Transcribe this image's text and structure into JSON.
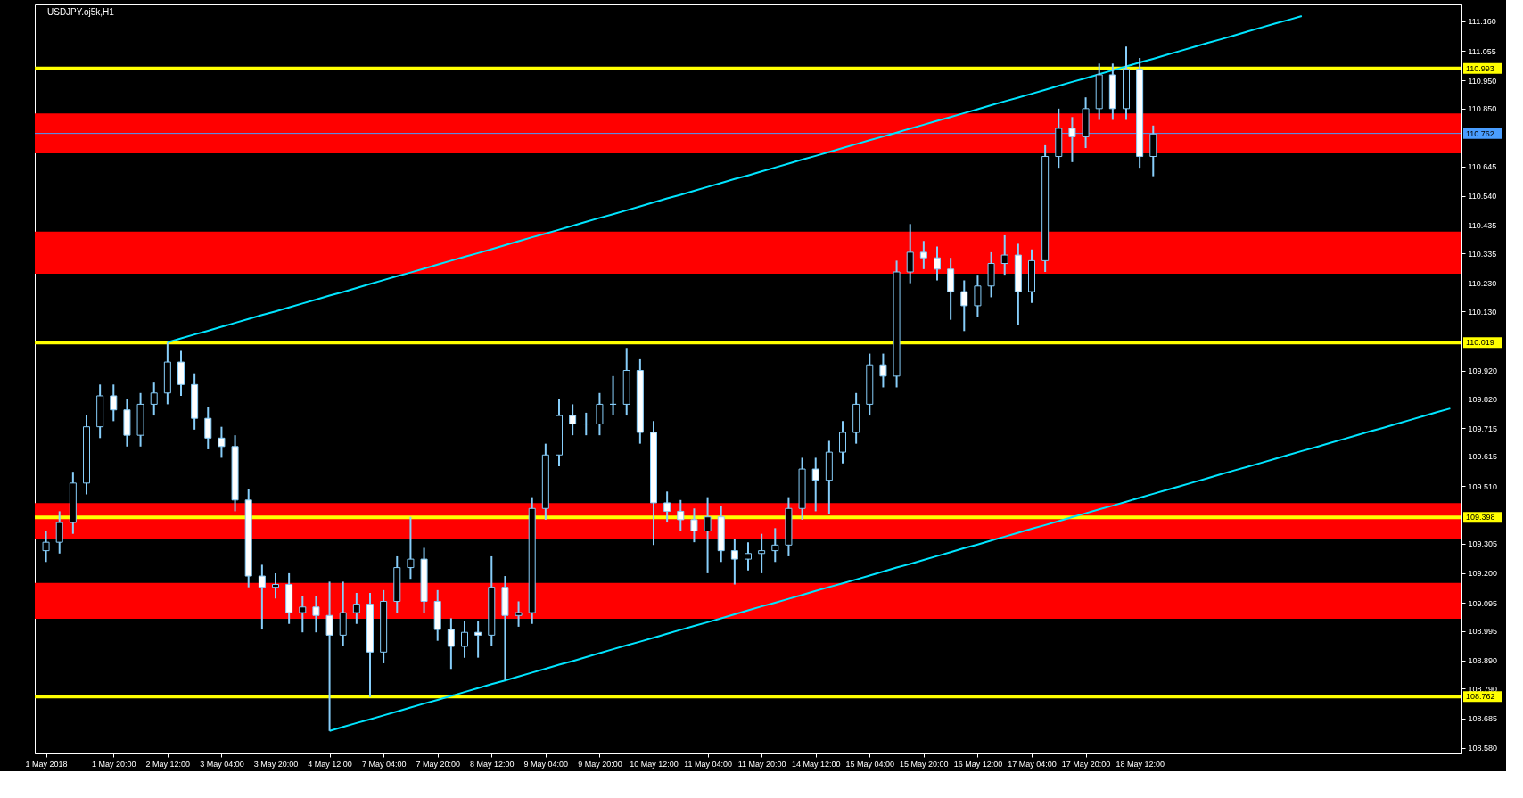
{
  "chart_data": {
    "type": "candlestick",
    "title": "USDJPY.oj5k,H1",
    "categories": [
      "1 May 2018",
      null,
      null,
      null,
      null,
      "1 May 20:00",
      null,
      null,
      null,
      "2 May 12:00",
      null,
      null,
      null,
      "3 May 04:00",
      null,
      null,
      null,
      "3 May 20:00",
      null,
      null,
      null,
      "4 May 12:00",
      null,
      null,
      null,
      "7 May 04:00",
      null,
      null,
      null,
      "7 May 20:00",
      null,
      null,
      null,
      "8 May 12:00",
      null,
      null,
      null,
      "9 May 04:00",
      null,
      null,
      null,
      "9 May 20:00",
      null,
      null,
      null,
      "10 May 12:00",
      null,
      null,
      null,
      "11 May 04:00",
      null,
      null,
      null,
      "11 May 20:00",
      null,
      null,
      null,
      "14 May 12:00",
      null,
      null,
      null,
      "15 May 04:00",
      null,
      null,
      null,
      "15 May 20:00",
      null,
      null,
      null,
      "16 May 12:00",
      null,
      null,
      null,
      "17 May 04:00",
      null,
      null,
      null,
      "17 May 20:00",
      null,
      null,
      null,
      "18 May 12:00",
      null,
      null,
      null,
      null,
      null,
      null,
      null,
      null,
      null,
      null,
      null,
      null,
      null,
      null,
      null,
      null,
      null,
      null,
      null,
      null,
      null,
      null,
      null
    ],
    "ylim": [
      108.56,
      111.22
    ],
    "yticks": [
      {
        "value": 111.16,
        "label": "111.160"
      },
      {
        "value": 111.055,
        "label": "111.055"
      },
      {
        "value": 110.95,
        "label": "110.950"
      },
      {
        "value": 110.85,
        "label": "110.850"
      },
      {
        "value": 110.645,
        "label": "110.645"
      },
      {
        "value": 110.54,
        "label": "110.540"
      },
      {
        "value": 110.435,
        "label": "110.435"
      },
      {
        "value": 110.335,
        "label": "110.335"
      },
      {
        "value": 110.23,
        "label": "110.230"
      },
      {
        "value": 110.13,
        "label": "110.130"
      },
      {
        "value": 109.92,
        "label": "109.920"
      },
      {
        "value": 109.82,
        "label": "109.820"
      },
      {
        "value": 109.715,
        "label": "109.715"
      },
      {
        "value": 109.615,
        "label": "109.615"
      },
      {
        "value": 109.51,
        "label": "109.510"
      },
      {
        "value": 109.305,
        "label": "109.305"
      },
      {
        "value": 109.2,
        "label": "109.200"
      },
      {
        "value": 109.095,
        "label": "109.095"
      },
      {
        "value": 108.995,
        "label": "108.995"
      },
      {
        "value": 108.89,
        "label": "108.890"
      },
      {
        "value": 108.79,
        "label": "108.790"
      },
      {
        "value": 108.685,
        "label": "108.685"
      },
      {
        "value": 108.58,
        "label": "108.580"
      }
    ],
    "grid": false,
    "color": "#87cefa",
    "bands": [
      {
        "axis": "y",
        "from": 110.691,
        "to": 110.833,
        "color": "#ff0000"
      },
      {
        "axis": "y",
        "from": 110.264,
        "to": 110.413,
        "color": "#ff0000"
      },
      {
        "axis": "y",
        "from": 109.321,
        "to": 109.449,
        "color": "#ff0000"
      },
      {
        "axis": "y",
        "from": 109.038,
        "to": 109.166,
        "color": "#ff0000"
      }
    ],
    "ref_lines": [
      {
        "axis": "y",
        "value": 110.993,
        "label": "110.993",
        "color": "#ffff00"
      },
      {
        "axis": "y",
        "value": 110.019,
        "label": "110.019",
        "color": "#ffff00"
      },
      {
        "axis": "y",
        "value": 109.398,
        "label": "109.398",
        "color": "#ffff00"
      },
      {
        "axis": "y",
        "value": 108.762,
        "label": "108.762",
        "color": "#ffff00"
      },
      {
        "axis": "y",
        "value": 110.762,
        "label": "110.762",
        "color": "#4a9eff"
      }
    ],
    "ohlc": [
      [
        109.28,
        109.35,
        109.24,
        109.31
      ],
      [
        109.31,
        109.42,
        109.27,
        109.38
      ],
      [
        109.38,
        109.56,
        109.34,
        109.52
      ],
      [
        109.52,
        109.76,
        109.48,
        109.72
      ],
      [
        109.72,
        109.87,
        109.68,
        109.83
      ],
      [
        109.83,
        109.87,
        109.74,
        109.78
      ],
      [
        109.78,
        109.82,
        109.65,
        109.69
      ],
      [
        109.69,
        109.84,
        109.65,
        109.8
      ],
      [
        109.8,
        109.88,
        109.76,
        109.84
      ],
      [
        109.84,
        110.02,
        109.8,
        109.95
      ],
      [
        109.95,
        109.99,
        109.83,
        109.87
      ],
      [
        109.87,
        109.91,
        109.71,
        109.75
      ],
      [
        109.75,
        109.79,
        109.64,
        109.68
      ],
      [
        109.68,
        109.72,
        109.61,
        109.65
      ],
      [
        109.65,
        109.69,
        109.42,
        109.46
      ],
      [
        109.46,
        109.5,
        109.15,
        109.19
      ],
      [
        109.19,
        109.23,
        109.0,
        109.15
      ],
      [
        109.15,
        109.2,
        109.11,
        109.16
      ],
      [
        109.16,
        109.2,
        109.02,
        109.06
      ],
      [
        109.06,
        109.12,
        108.99,
        109.08
      ],
      [
        109.08,
        109.12,
        108.99,
        109.05
      ],
      [
        109.05,
        109.17,
        108.64,
        108.98
      ],
      [
        108.98,
        109.17,
        108.94,
        109.06
      ],
      [
        109.06,
        109.13,
        109.02,
        109.09
      ],
      [
        109.09,
        109.13,
        108.76,
        108.92
      ],
      [
        108.92,
        109.14,
        108.88,
        109.1
      ],
      [
        109.1,
        109.26,
        109.06,
        109.22
      ],
      [
        109.22,
        109.4,
        109.18,
        109.25
      ],
      [
        109.25,
        109.29,
        109.06,
        109.1
      ],
      [
        109.1,
        109.14,
        108.96,
        109.0
      ],
      [
        109.0,
        109.04,
        108.86,
        108.94
      ],
      [
        108.94,
        109.03,
        108.9,
        108.99
      ],
      [
        108.99,
        109.03,
        108.9,
        108.98
      ],
      [
        108.98,
        109.26,
        108.94,
        109.15
      ],
      [
        109.15,
        109.19,
        108.82,
        109.05
      ],
      [
        109.05,
        109.1,
        109.01,
        109.06
      ],
      [
        109.06,
        109.47,
        109.02,
        109.43
      ],
      [
        109.43,
        109.66,
        109.39,
        109.62
      ],
      [
        109.62,
        109.82,
        109.58,
        109.76
      ],
      [
        109.76,
        109.8,
        109.69,
        109.73
      ],
      [
        109.73,
        109.77,
        109.69,
        109.73
      ],
      [
        109.73,
        109.84,
        109.69,
        109.8
      ],
      [
        109.8,
        109.9,
        109.76,
        109.8
      ],
      [
        109.8,
        110.0,
        109.76,
        109.92
      ],
      [
        109.92,
        109.96,
        109.66,
        109.7
      ],
      [
        109.7,
        109.74,
        109.3,
        109.45
      ],
      [
        109.45,
        109.49,
        109.38,
        109.42
      ],
      [
        109.42,
        109.46,
        109.35,
        109.39
      ],
      [
        109.39,
        109.43,
        109.31,
        109.35
      ],
      [
        109.35,
        109.47,
        109.2,
        109.4
      ],
      [
        109.4,
        109.44,
        109.24,
        109.28
      ],
      [
        109.28,
        109.32,
        109.16,
        109.25
      ],
      [
        109.25,
        109.31,
        109.21,
        109.27
      ],
      [
        109.27,
        109.34,
        109.2,
        109.28
      ],
      [
        109.28,
        109.36,
        109.24,
        109.3
      ],
      [
        109.3,
        109.47,
        109.26,
        109.43
      ],
      [
        109.43,
        109.61,
        109.39,
        109.57
      ],
      [
        109.57,
        109.61,
        109.42,
        109.53
      ],
      [
        109.53,
        109.67,
        109.41,
        109.63
      ],
      [
        109.63,
        109.74,
        109.59,
        109.7
      ],
      [
        109.7,
        109.84,
        109.66,
        109.8
      ],
      [
        109.8,
        109.98,
        109.76,
        109.94
      ],
      [
        109.94,
        109.98,
        109.86,
        109.9
      ],
      [
        109.9,
        110.31,
        109.86,
        110.27
      ],
      [
        110.27,
        110.44,
        110.23,
        110.34
      ],
      [
        110.34,
        110.38,
        110.28,
        110.32
      ],
      [
        110.32,
        110.36,
        110.24,
        110.28
      ],
      [
        110.28,
        110.32,
        110.1,
        110.2
      ],
      [
        110.2,
        110.24,
        110.06,
        110.15
      ],
      [
        110.15,
        110.26,
        110.11,
        110.22
      ],
      [
        110.22,
        110.34,
        110.18,
        110.3
      ],
      [
        110.3,
        110.4,
        110.26,
        110.33
      ],
      [
        110.33,
        110.37,
        110.08,
        110.2
      ],
      [
        110.2,
        110.35,
        110.16,
        110.31
      ],
      [
        110.31,
        110.72,
        110.27,
        110.68
      ],
      [
        110.68,
        110.85,
        110.64,
        110.78
      ],
      [
        110.78,
        110.82,
        110.66,
        110.75
      ],
      [
        110.75,
        110.89,
        110.71,
        110.85
      ],
      [
        110.85,
        111.01,
        110.81,
        110.97
      ],
      [
        110.97,
        111.01,
        110.81,
        110.85
      ],
      [
        110.85,
        111.07,
        110.81,
        110.99
      ],
      [
        110.99,
        111.03,
        110.64,
        110.68
      ],
      [
        110.68,
        110.79,
        110.61,
        110.76
      ],
      null,
      null,
      null,
      null,
      null,
      null,
      null,
      null,
      null,
      null,
      null,
      null,
      null,
      null,
      null,
      null,
      null,
      null,
      null,
      null,
      null,
      null
    ],
    "series": [
      {
        "type": "line",
        "color": "#00e5ff",
        "values": [
          null,
          null,
          null,
          null,
          null,
          null,
          null,
          null,
          null,
          110.02,
          110.034,
          110.048,
          110.061,
          110.075,
          110.089,
          110.103,
          110.117,
          110.13,
          110.144,
          110.158,
          110.172,
          110.186,
          110.199,
          110.213,
          110.227,
          110.241,
          110.255,
          110.268,
          110.282,
          110.296,
          110.31,
          110.324,
          110.337,
          110.351,
          110.365,
          110.379,
          110.393,
          110.406,
          110.42,
          110.434,
          110.448,
          110.462,
          110.475,
          110.489,
          110.503,
          110.517,
          110.531,
          110.544,
          110.558,
          110.572,
          110.586,
          110.6,
          110.613,
          110.627,
          110.641,
          110.655,
          110.669,
          110.682,
          110.696,
          110.71,
          110.724,
          110.738,
          110.751,
          110.765,
          110.779,
          110.793,
          110.807,
          110.82,
          110.834,
          110.848,
          110.862,
          110.876,
          110.889,
          110.903,
          110.917,
          110.931,
          110.945,
          110.958,
          110.972,
          110.986,
          111.0,
          111.014,
          111.027,
          111.041,
          111.055,
          111.069,
          111.083,
          111.096,
          111.11,
          111.124,
          111.138,
          111.152,
          111.165,
          111.179,
          null,
          null,
          null,
          null,
          null,
          null,
          null,
          null,
          null,
          null,
          null
        ]
      },
      {
        "type": "line",
        "color": "#00e5ff",
        "values": [
          null,
          null,
          null,
          null,
          null,
          null,
          null,
          null,
          null,
          null,
          null,
          null,
          null,
          null,
          null,
          null,
          null,
          null,
          null,
          null,
          null,
          108.64,
          108.654,
          108.668,
          108.681,
          108.695,
          108.709,
          108.723,
          108.737,
          108.75,
          108.764,
          108.778,
          108.792,
          108.806,
          108.819,
          108.833,
          108.847,
          108.861,
          108.875,
          108.888,
          108.902,
          108.916,
          108.93,
          108.944,
          108.957,
          108.971,
          108.985,
          108.999,
          109.013,
          109.026,
          109.04,
          109.054,
          109.068,
          109.082,
          109.095,
          109.109,
          109.123,
          109.137,
          109.151,
          109.164,
          109.178,
          109.192,
          109.206,
          109.22,
          109.233,
          109.247,
          109.261,
          109.275,
          109.289,
          109.302,
          109.316,
          109.33,
          109.344,
          109.358,
          109.371,
          109.385,
          109.399,
          109.413,
          109.427,
          109.44,
          109.454,
          109.468,
          109.482,
          109.496,
          109.509,
          109.523,
          109.537,
          109.551,
          109.565,
          109.578,
          109.592,
          109.606,
          109.62,
          109.634,
          109.647,
          109.661,
          109.675,
          109.689,
          109.703,
          109.716,
          109.73,
          109.744,
          109.758,
          109.772,
          109.785
        ]
      }
    ]
  }
}
